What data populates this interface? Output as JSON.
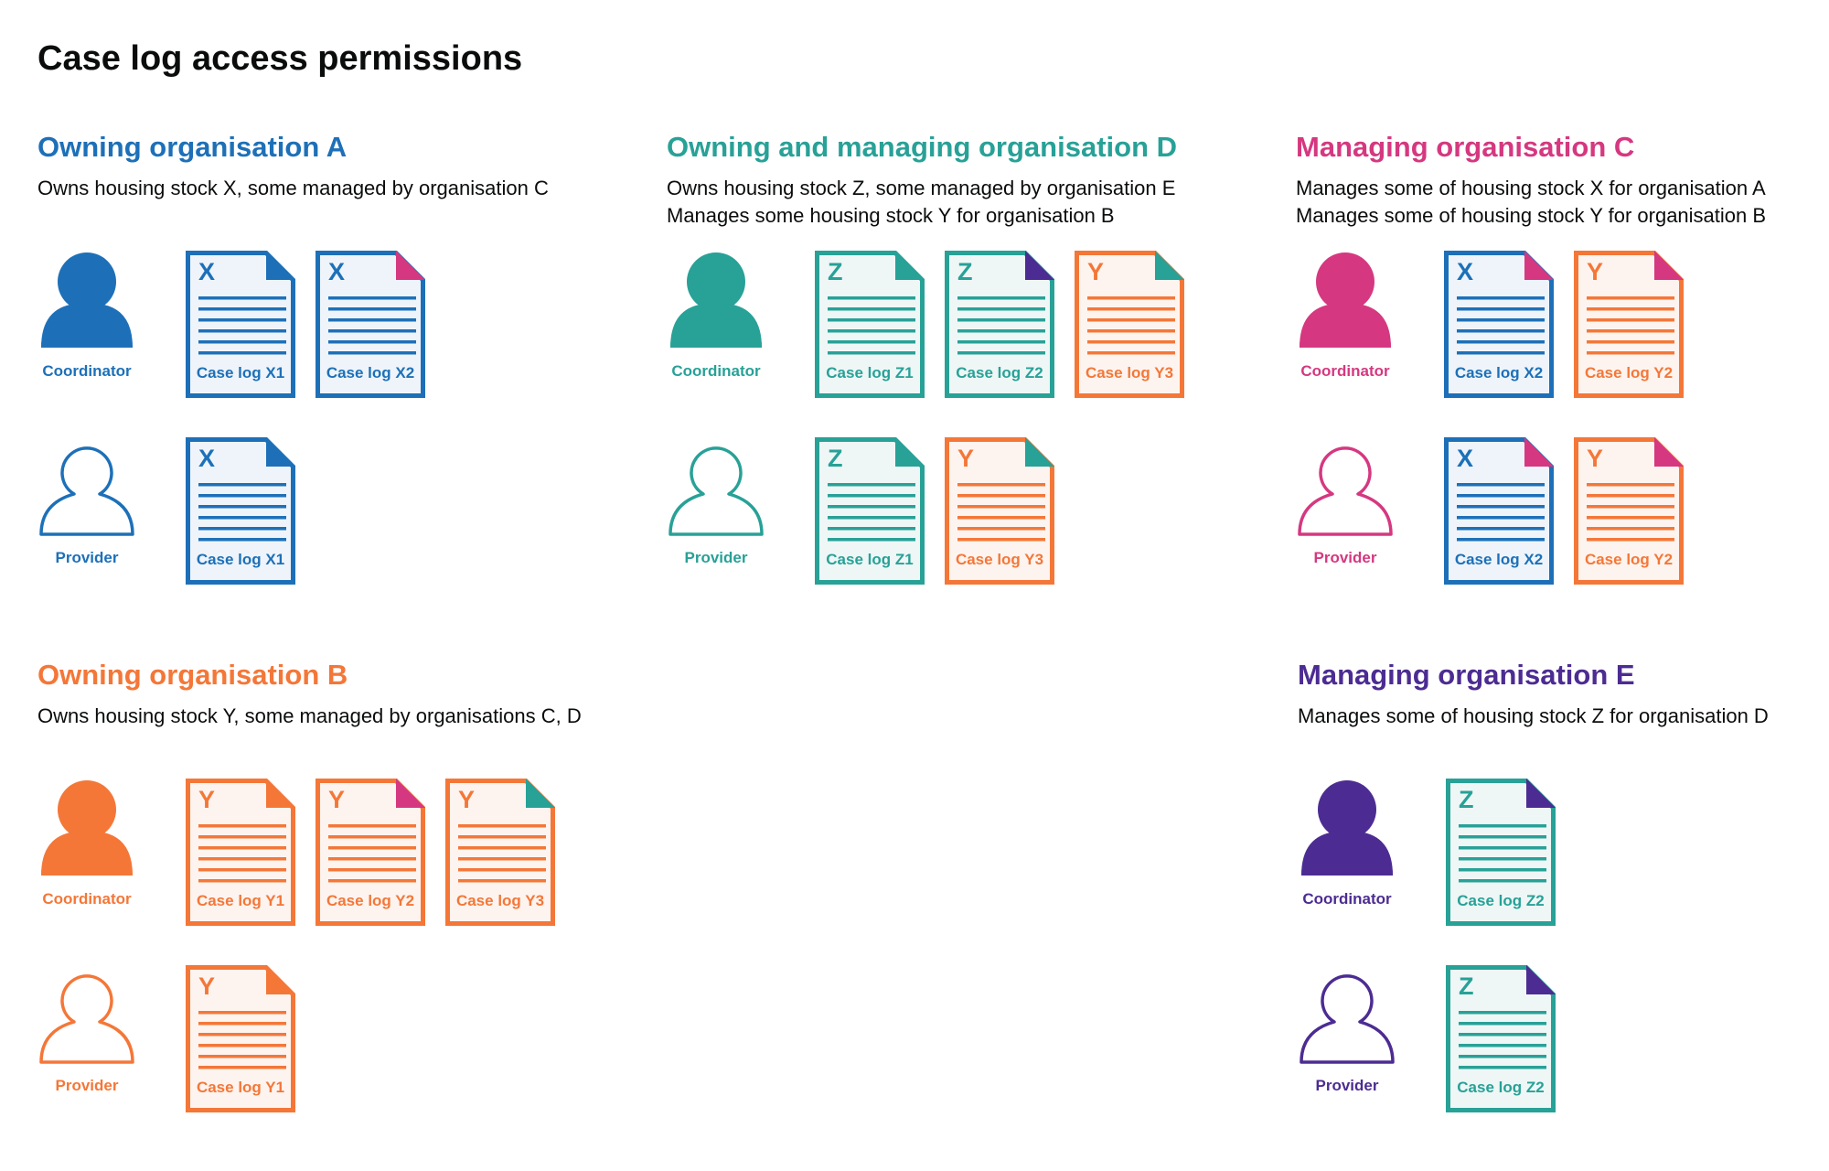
{
  "title": "Case log access permissions",
  "colors": {
    "blue": "#1d70b8",
    "teal": "#28a197",
    "pink": "#d53880",
    "orange": "#f47738",
    "purple": "#4c2c92"
  },
  "sections": [
    {
      "title": "Owning organisation A",
      "color": "#1d70b8",
      "desc": [
        "Owns housing stock X, some managed by organisation C"
      ],
      "rows": [
        {
          "role": "Coordinator",
          "icon": "person-filled",
          "docs": [
            {
              "letter": "X",
              "label": "Case log X1",
              "color": "#1d70b8",
              "fill": "#eef4fa",
              "fold": "#1d70b8"
            },
            {
              "letter": "X",
              "label": "Case log X2",
              "color": "#1d70b8",
              "fill": "#eef4fa",
              "fold": "#d53880"
            }
          ]
        },
        {
          "role": "Provider",
          "icon": "person-outline",
          "docs": [
            {
              "letter": "X",
              "label": "Case log X1",
              "color": "#1d70b8",
              "fill": "#eef4fa",
              "fold": "#1d70b8"
            }
          ]
        }
      ]
    },
    {
      "title": "Owning and managing organisation D",
      "color": "#28a197",
      "desc": [
        "Owns housing stock Z, some managed by organisation E",
        "Manages some housing stock Y for organisation B"
      ],
      "rows": [
        {
          "role": "Coordinator",
          "icon": "person-filled",
          "docs": [
            {
              "letter": "Z",
              "label": "Case log Z1",
              "color": "#28a197",
              "fill": "#eef7f6",
              "fold": "#28a197"
            },
            {
              "letter": "Z",
              "label": "Case log Z2",
              "color": "#28a197",
              "fill": "#eef7f6",
              "fold": "#4c2c92"
            },
            {
              "letter": "Y",
              "label": "Case log Y3",
              "color": "#f47738",
              "fill": "#fdf4ef",
              "fold": "#28a197"
            }
          ]
        },
        {
          "role": "Provider",
          "icon": "person-outline",
          "docs": [
            {
              "letter": "Z",
              "label": "Case log Z1",
              "color": "#28a197",
              "fill": "#eef7f6",
              "fold": "#28a197"
            },
            {
              "letter": "Y",
              "label": "Case log Y3",
              "color": "#f47738",
              "fill": "#fdf4ef",
              "fold": "#28a197"
            }
          ]
        }
      ]
    },
    {
      "title": "Managing organisation C",
      "color": "#d53880",
      "desc": [
        "Manages some of housing stock X for organisation A",
        "Manages some of housing stock Y for organisation B"
      ],
      "rows": [
        {
          "role": "Coordinator",
          "icon": "person-filled",
          "docs": [
            {
              "letter": "X",
              "label": "Case log X2",
              "color": "#1d70b8",
              "fill": "#eef4fa",
              "fold": "#d53880"
            },
            {
              "letter": "Y",
              "label": "Case log Y2",
              "color": "#f47738",
              "fill": "#fdf4ef",
              "fold": "#d53880"
            }
          ]
        },
        {
          "role": "Provider",
          "icon": "person-outline",
          "docs": [
            {
              "letter": "X",
              "label": "Case log X2",
              "color": "#1d70b8",
              "fill": "#eef4fa",
              "fold": "#d53880"
            },
            {
              "letter": "Y",
              "label": "Case log Y2",
              "color": "#f47738",
              "fill": "#fdf4ef",
              "fold": "#d53880"
            }
          ]
        }
      ]
    },
    {
      "title": "Owning organisation B",
      "color": "#f47738",
      "desc": [
        "Owns housing stock Y, some managed by organisations C, D"
      ],
      "rows": [
        {
          "role": "Coordinator",
          "icon": "person-filled",
          "docs": [
            {
              "letter": "Y",
              "label": "Case log Y1",
              "color": "#f47738",
              "fill": "#fdf4ef",
              "fold": "#f47738"
            },
            {
              "letter": "Y",
              "label": "Case log Y2",
              "color": "#f47738",
              "fill": "#fdf4ef",
              "fold": "#d53880"
            },
            {
              "letter": "Y",
              "label": "Case log Y3",
              "color": "#f47738",
              "fill": "#fdf4ef",
              "fold": "#28a197"
            }
          ]
        },
        {
          "role": "Provider",
          "icon": "person-outline",
          "docs": [
            {
              "letter": "Y",
              "label": "Case log Y1",
              "color": "#f47738",
              "fill": "#fdf4ef",
              "fold": "#f47738"
            }
          ]
        }
      ]
    },
    {
      "title": "Managing organisation E",
      "color": "#4c2c92",
      "desc": [
        "Manages some of housing stock Z for organisation D"
      ],
      "rows": [
        {
          "role": "Coordinator",
          "icon": "person-filled",
          "docs": [
            {
              "letter": "Z",
              "label": "Case log Z2",
              "color": "#28a197",
              "fill": "#eef7f6",
              "fold": "#4c2c92"
            }
          ]
        },
        {
          "role": "Provider",
          "icon": "person-outline",
          "docs": [
            {
              "letter": "Z",
              "label": "Case log Z2",
              "color": "#28a197",
              "fill": "#eef7f6",
              "fold": "#4c2c92"
            }
          ]
        }
      ]
    }
  ]
}
